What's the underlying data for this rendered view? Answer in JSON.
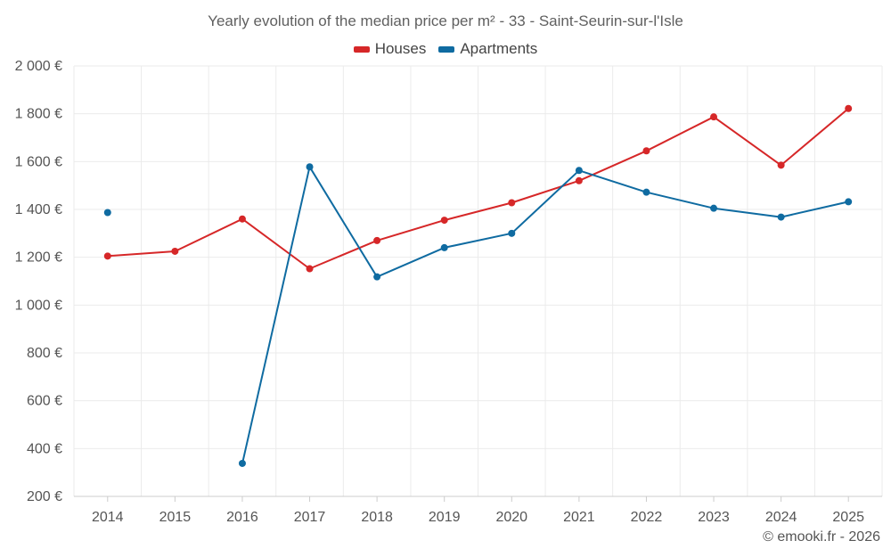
{
  "chart_data": {
    "type": "line",
    "title": "Yearly evolution of the median price per m² - 33 - Saint-Seurin-sur-l'Isle",
    "categories": [
      "2014",
      "2015",
      "2016",
      "2017",
      "2018",
      "2019",
      "2020",
      "2021",
      "2022",
      "2023",
      "2024",
      "2025"
    ],
    "y_ticks": [
      "200 €",
      "400 €",
      "600 €",
      "800 €",
      "1 000 €",
      "1 200 €",
      "1 400 €",
      "1 600 €",
      "1 800 €",
      "2 000 €"
    ],
    "ylim": [
      200,
      2000
    ],
    "grid": true,
    "legend_position": "top-center",
    "series": [
      {
        "name": "Houses",
        "color": "#d62728",
        "values": [
          1205,
          1225,
          1360,
          1152,
          1270,
          1355,
          1428,
          1520,
          1645,
          1787,
          1585,
          1822
        ]
      },
      {
        "name": "Apartments",
        "color": "#0f6ba1",
        "values": [
          1387,
          null,
          338,
          1578,
          1118,
          1240,
          1300,
          1563,
          1472,
          1405,
          1368,
          1432
        ]
      }
    ]
  },
  "footer": {
    "credit": "© emooki.fr - 2026"
  }
}
